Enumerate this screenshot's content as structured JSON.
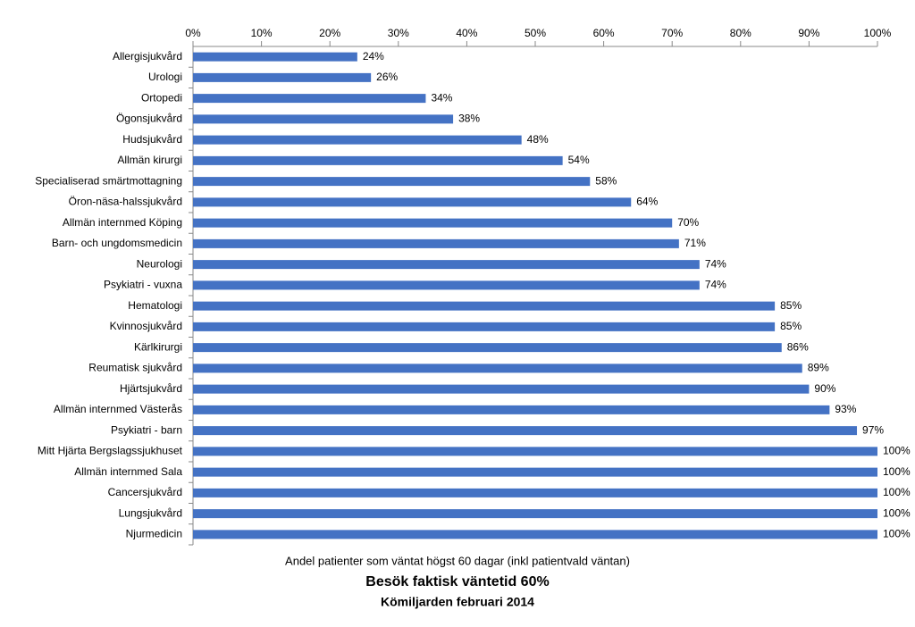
{
  "chart_data": {
    "type": "bar",
    "orientation": "horizontal",
    "title": "Kömiljarden februari 2014",
    "subtitle": "Besök faktisk väntetid 60%",
    "x_label": "Andel patienter som väntat högst 60 dagar (inkl patientvald väntan)",
    "categories": [
      "Njurmedicin",
      "Lungsjukvård",
      "Cancersjukvård",
      "Allmän internmed Sala",
      "Mitt Hjärta Bergslagssjukhuset",
      "Psykiatri - barn",
      "Allmän internmed Västerås",
      "Hjärtsjukvård",
      "Reumatisk sjukvård",
      "Kärlkirurgi",
      "Kvinnosjukvård",
      "Hematologi",
      "Psykiatri - vuxna",
      "Neurologi",
      "Barn- och ungdomsmedicin",
      "Allmän internmed Köping",
      "Öron-näsa-halssjukvård",
      "Specialiserad smärtmottagning",
      "Allmän kirurgi",
      "Hudsjukvård",
      "Ögonsjukvård",
      "Ortopedi",
      "Urologi",
      "Allergisjukvård"
    ],
    "values": [
      100,
      100,
      100,
      100,
      100,
      97,
      93,
      90,
      89,
      86,
      85,
      85,
      74,
      74,
      71,
      70,
      64,
      58,
      54,
      48,
      38,
      34,
      26,
      24
    ],
    "value_labels": [
      "100%",
      "100%",
      "100%",
      "100%",
      "100%",
      "97%",
      "93%",
      "90%",
      "89%",
      "86%",
      "85%",
      "85%",
      "74%",
      "74%",
      "71%",
      "70%",
      "64%",
      "58%",
      "54%",
      "48%",
      "38%",
      "34%",
      "26%",
      "24%"
    ],
    "color": "#4472c4",
    "xlim": [
      0,
      100
    ],
    "xticks": [
      {
        "value": 0,
        "label": "0%"
      },
      {
        "value": 10,
        "label": "10%"
      },
      {
        "value": 20,
        "label": "20%"
      },
      {
        "value": 30,
        "label": "30%"
      },
      {
        "value": 40,
        "label": "40%"
      },
      {
        "value": 50,
        "label": "50%"
      },
      {
        "value": 60,
        "label": "60%"
      },
      {
        "value": 70,
        "label": "70%"
      },
      {
        "value": 80,
        "label": "80%"
      },
      {
        "value": 90,
        "label": "90%"
      },
      {
        "value": 100,
        "label": "100%"
      }
    ],
    "flipped_vertically": true
  }
}
